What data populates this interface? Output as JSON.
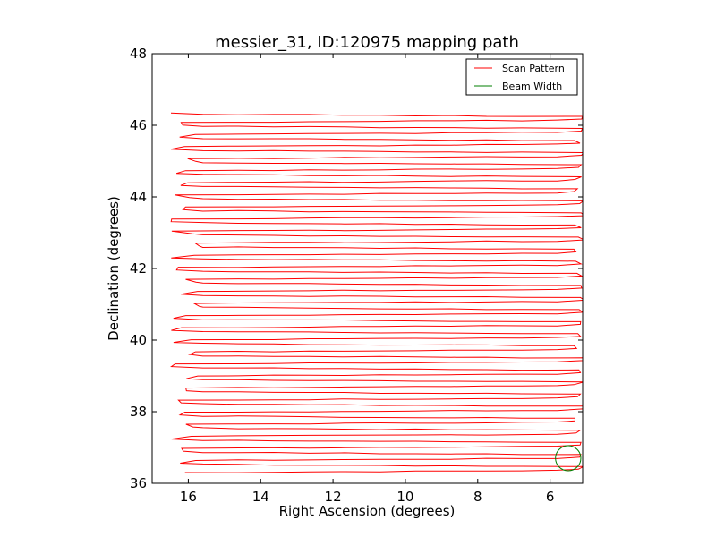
{
  "chart_data": {
    "type": "line",
    "title": "messier_31, ID:120975 mapping path",
    "xlabel": "Right Ascension (degrees)",
    "ylabel": "Declination (degrees)",
    "xlim": [
      17.0,
      5.1
    ],
    "ylim": [
      36,
      48
    ],
    "x_inverted": true,
    "xticks": [
      16,
      14,
      12,
      10,
      8,
      6
    ],
    "yticks": [
      36,
      38,
      40,
      42,
      44,
      46,
      48
    ],
    "xtick_labels": [
      "16",
      "14",
      "12",
      "10",
      "8",
      "6"
    ],
    "ytick_labels": [
      "36",
      "38",
      "40",
      "42",
      "44",
      "46",
      "48"
    ],
    "grid": false,
    "legend": {
      "placement": "top-right",
      "entries": [
        {
          "label": "Scan Pattern",
          "color": "#ff0000"
        },
        {
          "label": "Beam Width",
          "color": "#007f00"
        }
      ]
    },
    "series": [
      {
        "name": "Scan Pattern",
        "color": "#ff0000",
        "pattern": "raster",
        "dec_start": 36.3,
        "dec_end": 46.25,
        "n_legs": 60,
        "ra_range": [
          5.2,
          16.2
        ]
      },
      {
        "name": "Beam Width",
        "color": "#007f00",
        "shape": "circle",
        "center": [
          5.5,
          36.7
        ],
        "radius_deg": 0.35
      }
    ]
  }
}
